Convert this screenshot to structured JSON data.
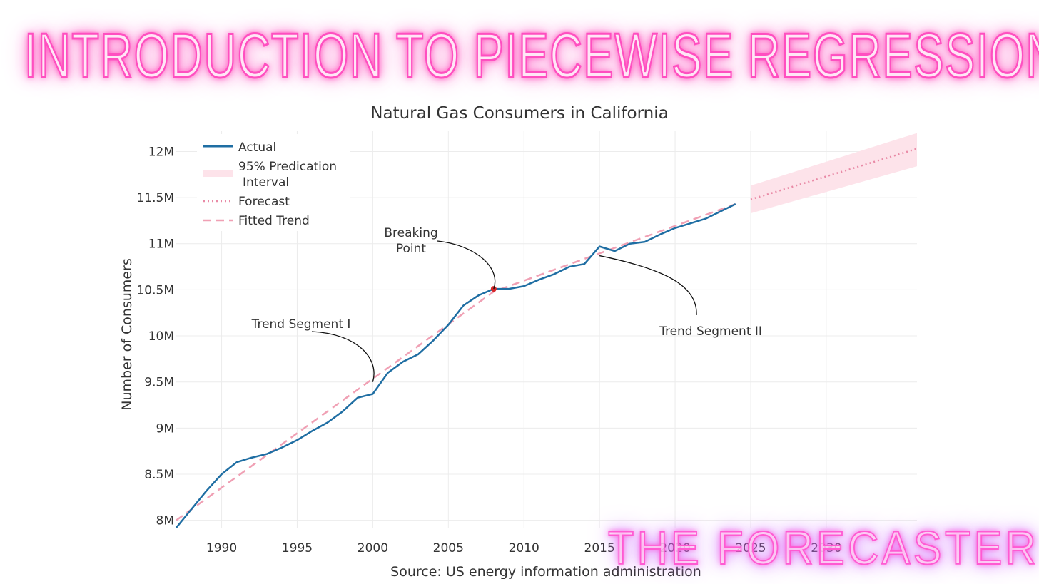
{
  "banner": {
    "title": "INTRODUCTION TO PIECEWISE REGRESSION"
  },
  "brand": {
    "name": "THE FORECASTER"
  },
  "colors": {
    "actual": "#1f6ea3",
    "trend": "#f0a0b4",
    "forecast": "#e98aa6",
    "interval": "#fde3ea",
    "breakpoint": "#d62728",
    "grid": "#ececec",
    "text": "#333333"
  },
  "chart_data": {
    "type": "line",
    "title": "Natural Gas Consumers in California",
    "xlabel": "",
    "ylabel": "Number of Consumers",
    "source": "Source: US energy information administration",
    "xlim": [
      1987,
      2036
    ],
    "ylim": [
      7.92,
      12.22
    ],
    "xticks": [
      1990,
      1995,
      2000,
      2005,
      2010,
      2015,
      2020,
      2025,
      2030
    ],
    "yticks": [
      8,
      8.5,
      9,
      9.5,
      10,
      10.5,
      11,
      11.5,
      12
    ],
    "ytick_labels": [
      "8M",
      "8.5M",
      "9M",
      "9.5M",
      "10M",
      "10.5M",
      "11M",
      "11.5M",
      "12M"
    ],
    "grid": true,
    "legend": {
      "position": "top-left",
      "items": [
        {
          "key": "actual",
          "label": "Actual"
        },
        {
          "key": "interval",
          "label": "95% Predication",
          "label2": "Interval"
        },
        {
          "key": "forecast",
          "label": "Forecast"
        },
        {
          "key": "trend",
          "label": "Fitted Trend"
        }
      ]
    },
    "series": [
      {
        "name": "Actual",
        "x": [
          1987,
          1988,
          1989,
          1990,
          1991,
          1992,
          1993,
          1994,
          1995,
          1996,
          1997,
          1998,
          1999,
          2000,
          2001,
          2002,
          2003,
          2004,
          2005,
          2006,
          2007,
          2008,
          2009,
          2010,
          2011,
          2012,
          2013,
          2014,
          2015,
          2016,
          2017,
          2018,
          2019,
          2020,
          2021,
          2022,
          2023,
          2024
        ],
        "values": [
          7.92,
          8.12,
          8.32,
          8.5,
          8.63,
          8.68,
          8.72,
          8.79,
          8.87,
          8.97,
          9.06,
          9.18,
          9.33,
          9.37,
          9.6,
          9.72,
          9.8,
          9.95,
          10.12,
          10.33,
          10.44,
          10.51,
          10.51,
          10.54,
          10.61,
          10.67,
          10.75,
          10.78,
          10.97,
          10.92,
          11.0,
          11.02,
          11.1,
          11.17,
          11.22,
          11.27,
          11.35,
          11.43
        ]
      },
      {
        "name": "Fitted Trend",
        "x": [
          1987,
          2008,
          2024
        ],
        "values": [
          8.0,
          10.48,
          11.43
        ]
      },
      {
        "name": "Forecast",
        "x": [
          2025,
          2036
        ],
        "values": [
          11.48,
          12.03
        ]
      },
      {
        "name": "95% Predication Interval",
        "x": [
          2025,
          2036
        ],
        "lower": [
          11.33,
          11.84
        ],
        "upper": [
          11.63,
          12.2
        ]
      }
    ],
    "breakpoint": {
      "x": 2008,
      "y": 10.51
    },
    "annotations": [
      {
        "id": "breaking-point",
        "lines": [
          "Breaking",
          "Point"
        ],
        "x": 2008,
        "y": 10.51
      },
      {
        "id": "trend-segment-1",
        "lines": [
          "Trend Segment I"
        ],
        "x": 2000,
        "y": 9.5
      },
      {
        "id": "trend-segment-2",
        "lines": [
          "Trend Segment II"
        ],
        "x": 2015,
        "y": 10.87
      }
    ]
  }
}
